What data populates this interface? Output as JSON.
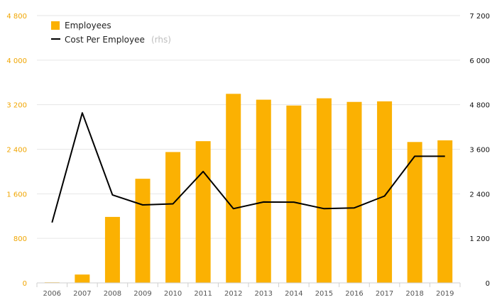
{
  "colors": {
    "bar": "#FBB102",
    "line": "#000000",
    "left_axis_text": "#F0A500",
    "right_axis_text": "#111111",
    "x_axis_text": "#555555",
    "gridline": "#e6e6e6",
    "note": "#bdbdbd"
  },
  "chart_data": {
    "type": "bar",
    "categories": [
      "2006",
      "2007",
      "2008",
      "2009",
      "2010",
      "2011",
      "2012",
      "2013",
      "2014",
      "2015",
      "2016",
      "2017",
      "2018",
      "2019"
    ],
    "series": [
      {
        "name": "Employees",
        "type": "bar",
        "axis": "left",
        "values": [
          10,
          150,
          1185,
          1870,
          2350,
          2545,
          3395,
          3290,
          3185,
          3315,
          3250,
          3260,
          2530,
          2560
        ]
      },
      {
        "name": "Cost Per Employee",
        "name_suffix": "(rhs)",
        "type": "line",
        "axis": "right",
        "values": [
          1625,
          4580,
          2370,
          2100,
          2130,
          3000,
          2000,
          2180,
          2175,
          2000,
          2020,
          2340,
          3410,
          3410
        ]
      }
    ],
    "y_left": {
      "lim": [
        0,
        4800
      ],
      "ticks": [
        0,
        800,
        1600,
        2400,
        3200,
        4000,
        4800
      ],
      "tick_labels": [
        "0",
        "800",
        "1 600",
        "2 400",
        "3 200",
        "4 000",
        "4 800"
      ]
    },
    "y_right": {
      "lim": [
        0,
        7200
      ],
      "ticks": [
        0,
        1200,
        2400,
        3600,
        4800,
        6000,
        7200
      ],
      "tick_labels": [
        "0",
        "1 200",
        "2 400",
        "3 600",
        "4 800",
        "6 000",
        "7 200"
      ]
    },
    "grid": true,
    "legend": "top-left"
  }
}
